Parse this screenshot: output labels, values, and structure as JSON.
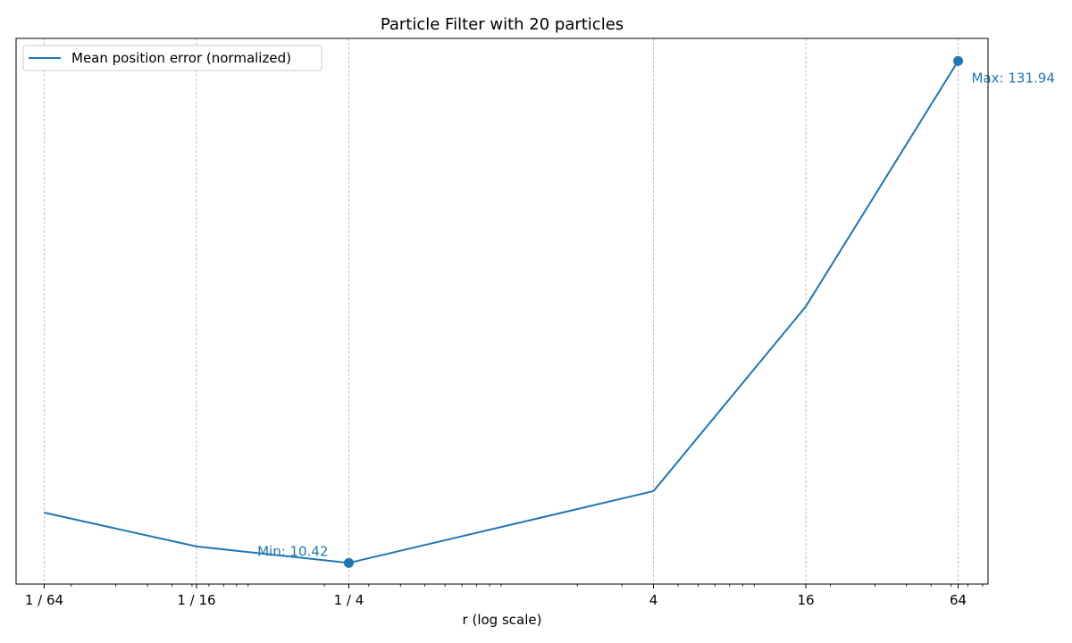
{
  "chart_data": {
    "type": "line",
    "title": "Particle Filter with 20 particles",
    "xlabel": "r (log scale)",
    "ylabel": "",
    "x_scale": "log2",
    "x_ticks": [
      {
        "value": 0.015625,
        "label": "1 / 64"
      },
      {
        "value": 0.0625,
        "label": "1 / 16"
      },
      {
        "value": 0.25,
        "label": "1 / 4"
      },
      {
        "value": 4,
        "label": "4"
      },
      {
        "value": 16,
        "label": "16"
      },
      {
        "value": 64,
        "label": "64"
      }
    ],
    "x_range": [
      0.0121,
      84
    ],
    "y_range": [
      5.3,
      137.4
    ],
    "y_ticks_shown": false,
    "grid": "vertical dashed at major x ticks",
    "legend_position": "upper left",
    "series": [
      {
        "name": "Mean position error (normalized)",
        "color": "#1f77b4",
        "x": [
          0.015625,
          0.0625,
          0.25,
          4,
          16,
          64
        ],
        "y": [
          22.6,
          14.4,
          10.42,
          27.8,
          72.5,
          131.94
        ]
      }
    ],
    "annotations": [
      {
        "text": "Min: 10.42",
        "x": 0.25,
        "y": 10.42,
        "placement": "left-above",
        "marker": true
      },
      {
        "text": "Max: 131.94",
        "x": 64,
        "y": 131.94,
        "placement": "right-below",
        "marker": true
      }
    ]
  }
}
